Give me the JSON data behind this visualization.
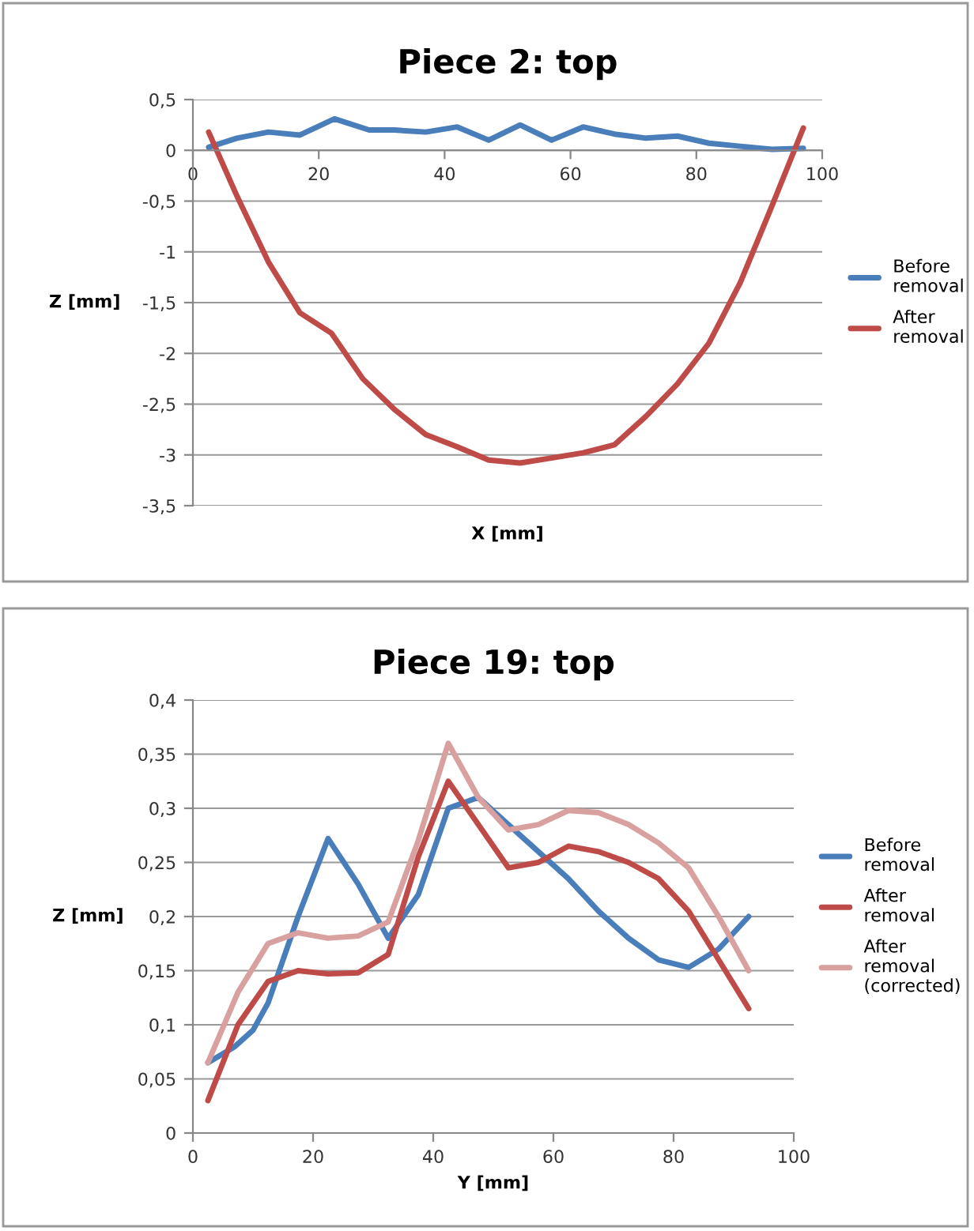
{
  "chart_data": [
    {
      "type": "line",
      "title": "Piece 2: top",
      "xlabel": "X [mm]",
      "ylabel": "Z [mm]",
      "xlim": [
        0,
        100
      ],
      "xticks": [
        0,
        20,
        40,
        60,
        80,
        100
      ],
      "ylim": [
        -3.5,
        0.5
      ],
      "yticks": [
        {
          "value": 0.5,
          "label": "0,5"
        },
        0,
        {
          "value": -0.5,
          "label": "-0,5"
        },
        {
          "value": -1,
          "label": "-1"
        },
        {
          "value": -1.5,
          "label": "-1,5"
        },
        {
          "value": -2,
          "label": "-2"
        },
        {
          "value": -2.5,
          "label": "-2,5"
        },
        {
          "value": -3,
          "label": "-3"
        },
        {
          "value": -3.5,
          "label": "-3,5"
        }
      ],
      "grid": "y",
      "legend": "right",
      "marker": "none",
      "line_style": "solid",
      "series": [
        {
          "name": "Before removal",
          "color": "#4a7ebb",
          "x": [
            2.5,
            7,
            12,
            17,
            22.5,
            28,
            32,
            37,
            42,
            47,
            52,
            57,
            62,
            67,
            72,
            77,
            82,
            87,
            92,
            97
          ],
          "values": [
            0.03,
            0.12,
            0.18,
            0.15,
            0.31,
            0.2,
            0.2,
            0.18,
            0.23,
            0.1,
            0.25,
            0.1,
            0.23,
            0.16,
            0.12,
            0.14,
            0.07,
            0.04,
            0.01,
            0.02
          ]
        },
        {
          "name": "After removal",
          "color": "#be4b48",
          "x": [
            2.5,
            7,
            12,
            17,
            22,
            27,
            32,
            37,
            42,
            47,
            52,
            57,
            62,
            67,
            72,
            77,
            82,
            87,
            92,
            97
          ],
          "values": [
            0.18,
            -0.45,
            -1.1,
            -1.6,
            -1.8,
            -2.25,
            -2.55,
            -2.8,
            -2.92,
            -3.05,
            -3.08,
            -3.03,
            -2.98,
            -2.9,
            -2.62,
            -2.3,
            -1.9,
            -1.3,
            -0.55,
            0.22
          ]
        }
      ]
    },
    {
      "type": "line",
      "title": "Piece 19: top",
      "xlabel": "Y [mm]",
      "ylabel": "Z [mm]",
      "xlim": [
        0,
        100
      ],
      "xticks": [
        0,
        20,
        40,
        60,
        80,
        100
      ],
      "ylim": [
        0,
        0.4
      ],
      "yticks": [
        0,
        {
          "value": 0.05,
          "label": "0,05"
        },
        {
          "value": 0.1,
          "label": "0,1"
        },
        {
          "value": 0.15,
          "label": "0,15"
        },
        {
          "value": 0.2,
          "label": "0,2"
        },
        {
          "value": 0.25,
          "label": "0,25"
        },
        {
          "value": 0.3,
          "label": "0,3"
        },
        {
          "value": 0.35,
          "label": "0,35"
        },
        {
          "value": 0.4,
          "label": "0,4"
        }
      ],
      "grid": "y",
      "legend": "right",
      "marker": "none",
      "line_style": "solid",
      "series": [
        {
          "name": "Before removal",
          "color": "#4a7ebb",
          "x": [
            2.5,
            7,
            10,
            12.5,
            17.5,
            22.5,
            27.5,
            32.5,
            37.5,
            42.5,
            47.5,
            52.5,
            57.5,
            62.5,
            67.5,
            72.5,
            77.5,
            82.5,
            87.5,
            92.5
          ],
          "values": [
            0.065,
            0.08,
            0.095,
            0.12,
            0.2,
            0.272,
            0.23,
            0.18,
            0.22,
            0.3,
            0.31,
            0.285,
            0.26,
            0.235,
            0.205,
            0.18,
            0.16,
            0.153,
            0.17,
            0.2
          ]
        },
        {
          "name": "After removal",
          "color": "#be4b48",
          "x": [
            2.5,
            7.5,
            12.5,
            17.5,
            22.5,
            27.5,
            32.5,
            37.5,
            42.5,
            47.5,
            52.5,
            57.5,
            62.5,
            67.5,
            72.5,
            77.5,
            82.5,
            87.5,
            92.5
          ],
          "values": [
            0.03,
            0.1,
            0.14,
            0.15,
            0.147,
            0.148,
            0.165,
            0.255,
            0.325,
            0.285,
            0.245,
            0.25,
            0.265,
            0.26,
            0.25,
            0.235,
            0.205,
            0.16,
            0.115
          ]
        },
        {
          "name": "After removal (corrected)",
          "color": "#d9a0a0",
          "x": [
            2.5,
            7.5,
            12.5,
            17.5,
            22.5,
            27.5,
            32.5,
            37.5,
            42.5,
            47.5,
            52.5,
            57.5,
            62.5,
            67.5,
            72.5,
            77.5,
            82.5,
            87.5,
            92.5
          ],
          "values": [
            0.065,
            0.13,
            0.175,
            0.185,
            0.18,
            0.182,
            0.195,
            0.27,
            0.36,
            0.31,
            0.28,
            0.285,
            0.298,
            0.296,
            0.285,
            0.268,
            0.245,
            0.2,
            0.15
          ]
        }
      ]
    }
  ]
}
